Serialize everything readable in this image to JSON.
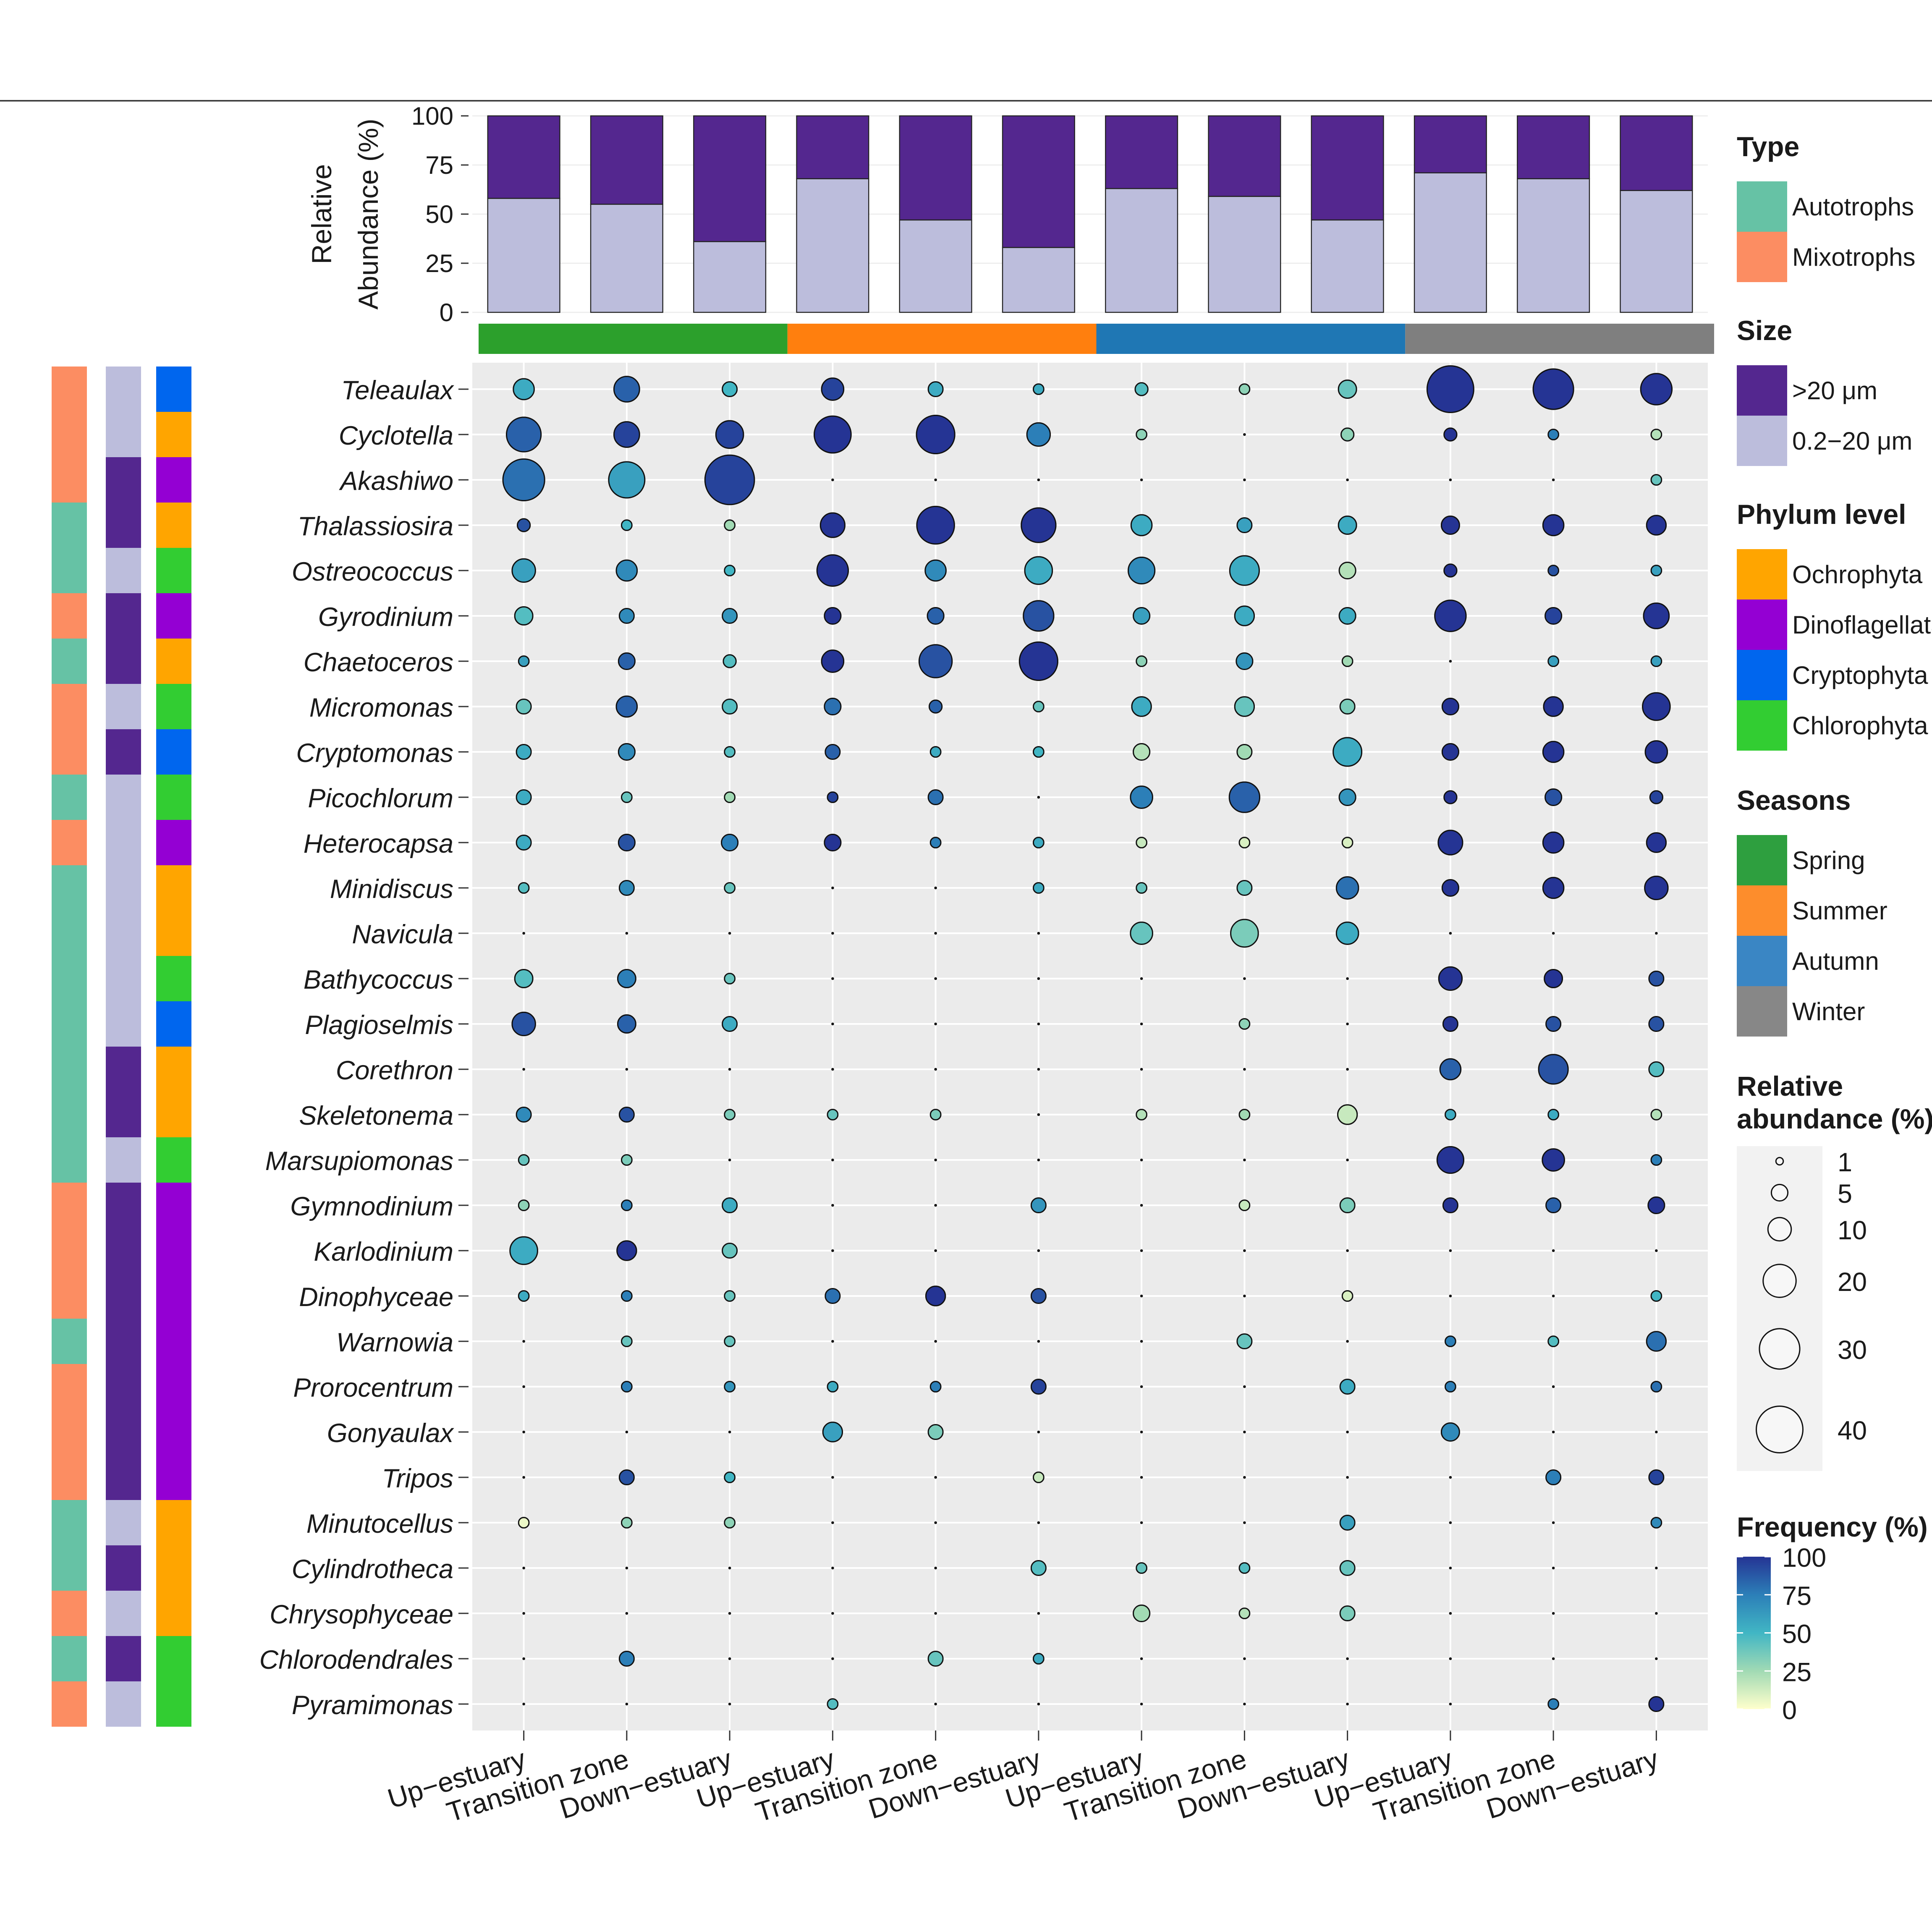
{
  "chart_data": {
    "type": "bubble",
    "x_categories": [
      "Up−estuary",
      "Transition zone",
      "Down−estuary",
      "Up−estuary",
      "Transition zone",
      "Down−estuary",
      "Up−estuary",
      "Transition zone",
      "Down−estuary",
      "Up−estuary",
      "Transition zone",
      "Down−estuary"
    ],
    "seasons": [
      {
        "name": "Spring",
        "color": "#2ca02c"
      },
      {
        "name": "Summer",
        "color": "#ff7f0e"
      },
      {
        "name": "Autumn",
        "color": "#1f77b4"
      },
      {
        "name": "Winter",
        "color": "#7f7f7f"
      }
    ],
    "bar_chart": {
      "ylabel_line1": "Relative",
      "ylabel_line2": "Abundance (%)",
      "yticks": [
        "100",
        "75",
        "50",
        "25",
        "0"
      ],
      "ylim": [
        0,
        100
      ],
      "small_pct": [
        58,
        55,
        36,
        68,
        47,
        33,
        63,
        59,
        47,
        71,
        68,
        62
      ]
    },
    "taxa": [
      "Teleaulax",
      "Cyclotella",
      "Akashiwo",
      "Thalassiosira",
      "Ostreococcus",
      "Gyrodinium",
      "Chaetoceros",
      "Micromonas",
      "Cryptomonas",
      "Picochlorum",
      "Heterocapsa",
      "Minidiscus",
      "Navicula",
      "Bathycoccus",
      "Plagioselmis",
      "Corethron",
      "Skeletonema",
      "Marsupiomonas",
      "Gymnodinium",
      "Karlodinium",
      "Dinophyceae",
      "Warnowia",
      "Prorocentrum",
      "Gonyaulax",
      "Tripos",
      "Minutocellus",
      "Cylindrotheca",
      "Chrysophyceae",
      "Chlorodendrales",
      "Pyramimonas"
    ],
    "row_type": [
      "M",
      "M",
      "M",
      "A",
      "A",
      "M",
      "A",
      "M",
      "M",
      "A",
      "M",
      "A",
      "A",
      "A",
      "A",
      "A",
      "A",
      "A",
      "M",
      "M",
      "M",
      "A",
      "M",
      "M",
      "M",
      "A",
      "A",
      "M",
      "A",
      "M"
    ],
    "row_size": [
      "S",
      "S",
      "L",
      "L",
      "S",
      "L",
      "L",
      "S",
      "L",
      "S",
      "S",
      "S",
      "S",
      "S",
      "S",
      "L",
      "L",
      "S",
      "L",
      "L",
      "L",
      "L",
      "L",
      "L",
      "L",
      "S",
      "L",
      "S",
      "L",
      "S"
    ],
    "row_phylum": [
      "Cr",
      "Oc",
      "Di",
      "Oc",
      "Ch",
      "Di",
      "Oc",
      "Ch",
      "Cr",
      "Ch",
      "Di",
      "Oc",
      "Oc",
      "Ch",
      "Cr",
      "Oc",
      "Oc",
      "Ch",
      "Di",
      "Di",
      "Di",
      "Di",
      "Di",
      "Di",
      "Di",
      "Oc",
      "Oc",
      "Oc",
      "Ch",
      "Ch"
    ],
    "abundance": [
      [
        8,
        12,
        4,
        9,
        4,
        2,
        3,
        2,
        6,
        40,
        30,
        18
      ],
      [
        22,
        12,
        14,
        25,
        27,
        10,
        2,
        0,
        3,
        3,
        2,
        2
      ],
      [
        32,
        24,
        45,
        0,
        0,
        0,
        0,
        0,
        0,
        0,
        0,
        2
      ],
      [
        3,
        2,
        2,
        11,
        26,
        22,
        8,
        4,
        6,
        6,
        8,
        7
      ],
      [
        10,
        8,
        2,
        18,
        8,
        14,
        13,
        16,
        5,
        3,
        2,
        2
      ],
      [
        6,
        4,
        4,
        5,
        5,
        17,
        5,
        7,
        5,
        18,
        5,
        12
      ],
      [
        2,
        5,
        3,
        9,
        20,
        27,
        2,
        5,
        2,
        0,
        2,
        2
      ],
      [
        4,
        8,
        4,
        5,
        3,
        2,
        7,
        7,
        4,
        5,
        7,
        14
      ],
      [
        4,
        5,
        2,
        4,
        2,
        2,
        5,
        4,
        15,
        5,
        8,
        9
      ],
      [
        4,
        2,
        2,
        2,
        4,
        0,
        9,
        17,
        5,
        3,
        5,
        3
      ],
      [
        4,
        5,
        5,
        5,
        2,
        2,
        2,
        2,
        2,
        11,
        8,
        7
      ],
      [
        2,
        4,
        2,
        0,
        0,
        2,
        2,
        4,
        9,
        5,
        8,
        10
      ],
      [
        0,
        0,
        0,
        0,
        0,
        0,
        9,
        14,
        9,
        0,
        0,
        0
      ],
      [
        6,
        6,
        2,
        0,
        0,
        0,
        0,
        0,
        0,
        10,
        6,
        4
      ],
      [
        10,
        6,
        4,
        0,
        0,
        0,
        0,
        2,
        0,
        4,
        4,
        4
      ],
      [
        0,
        0,
        0,
        0,
        0,
        0,
        0,
        0,
        0,
        8,
        16,
        4
      ],
      [
        4,
        4,
        2,
        2,
        2,
        0,
        2,
        2,
        7,
        2,
        2,
        2
      ],
      [
        2,
        2,
        0,
        0,
        0,
        0,
        0,
        0,
        0,
        13,
        9,
        2
      ],
      [
        2,
        2,
        4,
        0,
        0,
        4,
        0,
        2,
        4,
        4,
        4,
        5
      ],
      [
        14,
        7,
        4,
        0,
        0,
        0,
        0,
        0,
        0,
        0,
        0,
        0
      ],
      [
        2,
        2,
        2,
        4,
        7,
        4,
        0,
        0,
        2,
        0,
        0,
        2
      ],
      [
        0,
        2,
        2,
        0,
        0,
        0,
        0,
        4,
        0,
        2,
        2,
        7
      ],
      [
        0,
        2,
        2,
        2,
        2,
        4,
        0,
        0,
        4,
        2,
        0,
        2
      ],
      [
        0,
        0,
        0,
        7,
        4,
        0,
        0,
        0,
        0,
        6,
        0,
        0
      ],
      [
        0,
        4,
        2,
        0,
        0,
        2,
        0,
        0,
        0,
        0,
        4,
        4
      ],
      [
        2,
        2,
        2,
        0,
        0,
        0,
        0,
        0,
        4,
        0,
        0,
        2
      ],
      [
        0,
        0,
        0,
        0,
        0,
        4,
        2,
        2,
        4,
        0,
        0,
        0
      ],
      [
        0,
        0,
        0,
        0,
        0,
        0,
        5,
        2,
        4,
        0,
        0,
        0
      ],
      [
        0,
        4,
        0,
        0,
        4,
        2,
        0,
        0,
        0,
        0,
        0,
        0
      ],
      [
        0,
        0,
        0,
        2,
        0,
        0,
        0,
        0,
        0,
        0,
        2,
        4
      ]
    ],
    "frequency": [
      [
        55,
        85,
        50,
        95,
        55,
        55,
        45,
        30,
        40,
        100,
        100,
        100
      ],
      [
        85,
        95,
        95,
        100,
        100,
        75,
        30,
        50,
        30,
        100,
        75,
        20
      ],
      [
        80,
        60,
        95,
        0,
        0,
        0,
        0,
        0,
        0,
        0,
        0,
        40
      ],
      [
        90,
        50,
        25,
        100,
        100,
        100,
        55,
        60,
        55,
        100,
        100,
        100
      ],
      [
        60,
        70,
        50,
        100,
        70,
        55,
        70,
        55,
        20,
        100,
        90,
        60
      ],
      [
        45,
        70,
        65,
        100,
        85,
        90,
        60,
        55,
        55,
        100,
        95,
        100
      ],
      [
        60,
        85,
        45,
        100,
        90,
        100,
        30,
        65,
        25,
        0,
        60,
        60
      ],
      [
        40,
        85,
        45,
        80,
        85,
        40,
        55,
        40,
        35,
        100,
        100,
        100
      ],
      [
        55,
        70,
        45,
        85,
        55,
        50,
        20,
        25,
        55,
        100,
        100,
        100
      ],
      [
        55,
        40,
        25,
        95,
        80,
        0,
        75,
        85,
        65,
        100,
        90,
        95
      ],
      [
        55,
        90,
        75,
        100,
        75,
        55,
        15,
        10,
        10,
        100,
        100,
        100
      ],
      [
        45,
        70,
        40,
        0,
        0,
        55,
        40,
        40,
        80,
        100,
        100,
        100
      ],
      [
        0,
        0,
        0,
        0,
        0,
        0,
        40,
        35,
        55,
        0,
        0,
        0
      ],
      [
        45,
        75,
        40,
        0,
        0,
        0,
        0,
        0,
        0,
        100,
        100,
        90
      ],
      [
        90,
        85,
        55,
        0,
        0,
        0,
        0,
        30,
        0,
        100,
        90,
        90
      ],
      [
        0,
        0,
        0,
        0,
        0,
        0,
        0,
        0,
        0,
        85,
        90,
        45
      ],
      [
        70,
        90,
        35,
        40,
        35,
        0,
        20,
        25,
        15,
        55,
        55,
        20
      ],
      [
        40,
        35,
        0,
        0,
        0,
        0,
        0,
        0,
        0,
        100,
        100,
        75
      ],
      [
        30,
        75,
        55,
        0,
        0,
        65,
        0,
        15,
        35,
        100,
        85,
        100
      ],
      [
        55,
        100,
        40,
        0,
        0,
        0,
        0,
        0,
        0,
        0,
        0,
        0
      ],
      [
        55,
        75,
        40,
        80,
        100,
        90,
        0,
        0,
        10,
        0,
        0,
        50
      ],
      [
        0,
        40,
        40,
        0,
        0,
        0,
        0,
        40,
        0,
        75,
        45,
        80
      ],
      [
        0,
        75,
        65,
        55,
        75,
        95,
        0,
        0,
        55,
        75,
        0,
        80
      ],
      [
        0,
        0,
        0,
        60,
        35,
        0,
        0,
        0,
        0,
        70,
        0,
        0
      ],
      [
        0,
        90,
        50,
        0,
        0,
        15,
        0,
        0,
        0,
        0,
        75,
        95
      ],
      [
        5,
        30,
        30,
        0,
        0,
        0,
        0,
        0,
        60,
        0,
        0,
        70
      ],
      [
        0,
        0,
        0,
        0,
        0,
        45,
        40,
        45,
        40,
        0,
        0,
        0
      ],
      [
        0,
        0,
        0,
        0,
        0,
        0,
        25,
        20,
        35,
        0,
        0,
        0
      ],
      [
        0,
        75,
        0,
        0,
        40,
        55,
        0,
        0,
        0,
        0,
        0,
        0
      ],
      [
        0,
        0,
        0,
        45,
        0,
        0,
        0,
        0,
        0,
        0,
        75,
        100
      ]
    ],
    "legend": {
      "type": {
        "title": "Type",
        "items": [
          {
            "key": "A",
            "label": "Autotrophs",
            "color": "#66c2a5"
          },
          {
            "key": "M",
            "label": "Mixotrophs",
            "color": "#fc8d62"
          }
        ]
      },
      "size": {
        "title": "Size",
        "items": [
          {
            "key": "L",
            "label": ">20 μm",
            "color": "#54278f"
          },
          {
            "key": "S",
            "label": "0.2−20 μm",
            "color": "#bcbddc"
          }
        ]
      },
      "phylum": {
        "title": "Phylum level",
        "items": [
          {
            "key": "Oc",
            "label": "Ochrophyta",
            "color": "#ffa500"
          },
          {
            "key": "Di",
            "label": "Dinoflagellata",
            "color": "#9400d3"
          },
          {
            "key": "Cr",
            "label": "Cryptophyta",
            "color": "#0066ee"
          },
          {
            "key": "Ch",
            "label": "Chlorophyta",
            "color": "#32cd32"
          }
        ]
      },
      "seasons": {
        "title": "Seasons",
        "items": [
          {
            "label": "Spring",
            "color": "#2e9f3f"
          },
          {
            "label": "Summer",
            "color": "#fd8d2c"
          },
          {
            "label": "Autumn",
            "color": "#3a86c4"
          },
          {
            "label": "Winter",
            "color": "#878787"
          }
        ]
      },
      "abundance": {
        "title_line1": "Relative",
        "title_line2": "abundance (%)",
        "items": [
          {
            "value": 1,
            "label": "1"
          },
          {
            "value": 5,
            "label": "5"
          },
          {
            "value": 10,
            "label": "10"
          },
          {
            "value": 20,
            "label": "20"
          },
          {
            "value": 30,
            "label": "30"
          },
          {
            "value": 40,
            "label": "40"
          }
        ]
      },
      "frequency": {
        "title": "Frequency (%)",
        "ticks": [
          "100",
          "75",
          "50",
          "25",
          "0"
        ],
        "stops": [
          "#ffffcc",
          "#a1dab4",
          "#41b6c4",
          "#2c7fb8",
          "#253494"
        ]
      }
    }
  }
}
